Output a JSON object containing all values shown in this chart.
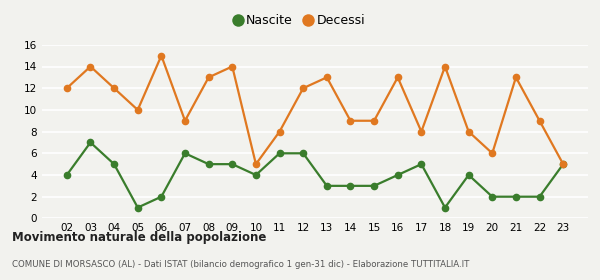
{
  "years": [
    "02",
    "03",
    "04",
    "05",
    "06",
    "07",
    "08",
    "09",
    "10",
    "11",
    "12",
    "13",
    "14",
    "15",
    "16",
    "17",
    "18",
    "19",
    "20",
    "21",
    "22",
    "23"
  ],
  "nascite": [
    4,
    7,
    5,
    1,
    2,
    6,
    5,
    5,
    4,
    6,
    6,
    3,
    3,
    3,
    4,
    5,
    1,
    4,
    2,
    2,
    2,
    5
  ],
  "decessi": [
    12,
    14,
    12,
    10,
    15,
    9,
    13,
    14,
    5,
    8,
    12,
    13,
    9,
    9,
    13,
    8,
    14,
    8,
    6,
    13,
    9,
    5
  ],
  "nascite_color": "#3a7d2c",
  "decessi_color": "#e07820",
  "background_color": "#f2f2ee",
  "ylim": [
    0,
    16
  ],
  "yticks": [
    0,
    2,
    4,
    6,
    8,
    10,
    12,
    14,
    16
  ],
  "title": "Movimento naturale della popolazione",
  "subtitle": "COMUNE DI MORSASCO (AL) - Dati ISTAT (bilancio demografico 1 gen-31 dic) - Elaborazione TUTTITALIA.IT",
  "legend_nascite": "Nascite",
  "legend_decessi": "Decessi",
  "marker": "o",
  "markersize": 4.5,
  "linewidth": 1.6
}
